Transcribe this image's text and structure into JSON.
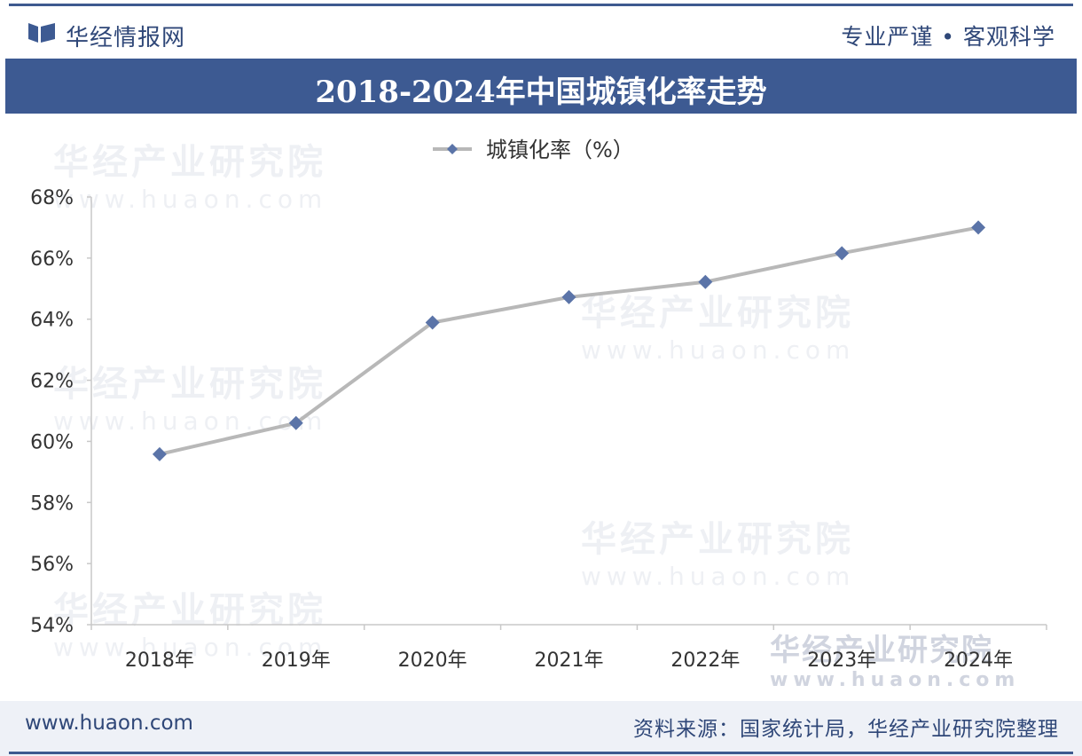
{
  "header": {
    "brand": "华经情报网",
    "slogan": "专业严谨 • 客观科学"
  },
  "colors": {
    "brand_blue": "#3d5a92",
    "line": "#b8b8b8",
    "marker": "#5b74a8"
  },
  "watermark": {
    "name": "华经产业研究院",
    "url": "www.huaon.com"
  },
  "footer": {
    "site": "www.huaon.com",
    "source": "资料来源：国家统计局，华经产业研究院整理"
  },
  "chart_data": {
    "type": "line",
    "title": "2018-2024年中国城镇化率走势",
    "categories": [
      "2018年",
      "2019年",
      "2020年",
      "2021年",
      "2022年",
      "2023年",
      "2024年"
    ],
    "series": [
      {
        "name": "城镇化率（%）",
        "values": [
          59.58,
          60.6,
          63.89,
          64.72,
          65.22,
          66.16,
          67.0
        ]
      }
    ],
    "ylim": [
      54,
      68
    ],
    "yticks": [
      54,
      56,
      58,
      60,
      62,
      64,
      66,
      68
    ],
    "ytick_labels": [
      "54%",
      "56%",
      "58%",
      "60%",
      "62%",
      "64%",
      "66%",
      "68%"
    ],
    "legend_position": "top-center",
    "grid": false
  }
}
